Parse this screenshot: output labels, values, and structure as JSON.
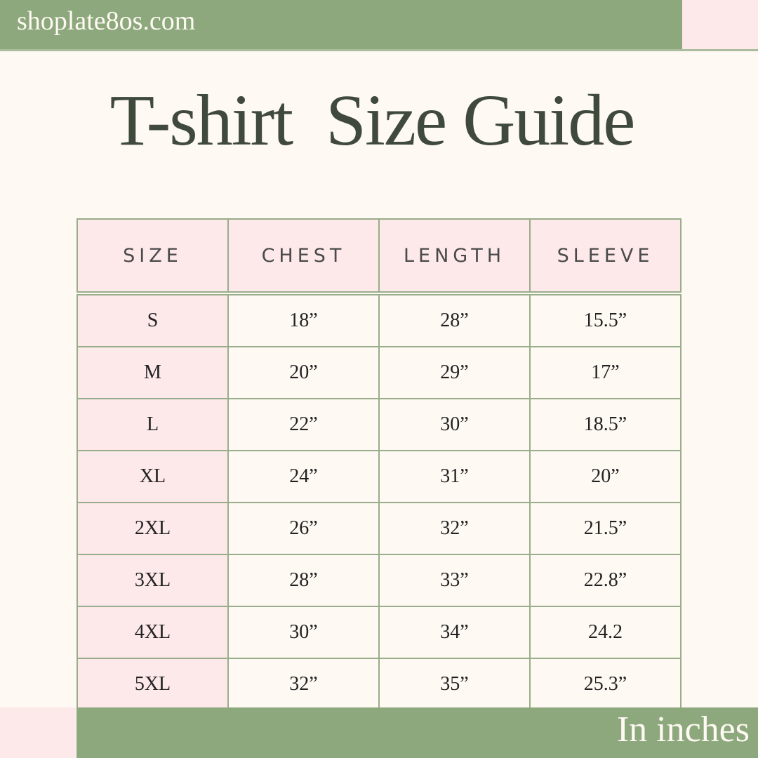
{
  "site": "shoplate8os.com",
  "title": "T-shirt  Size Guide",
  "columns": [
    "SIZE",
    "CHEST",
    "LENGTH",
    "SLEEVE"
  ],
  "rows": [
    [
      "S",
      "18”",
      "28”",
      "15.5”"
    ],
    [
      "M",
      "20”",
      "29”",
      "17”"
    ],
    [
      "L",
      "22”",
      "30”",
      "18.5”"
    ],
    [
      "XL",
      "24”",
      "31”",
      "20”"
    ],
    [
      "2XL",
      "26”",
      "32”",
      "21.5”"
    ],
    [
      "3XL",
      "28”",
      "33”",
      "22.8”"
    ],
    [
      "4XL",
      "30”",
      "34”",
      "24.2"
    ],
    [
      "5XL",
      "32”",
      "35”",
      "25.3”"
    ]
  ],
  "footer": "In inches",
  "colors": {
    "green": "#8da87c",
    "pink": "#fde8ea",
    "cream": "#fef9f3",
    "title": "#3f4a3c"
  }
}
